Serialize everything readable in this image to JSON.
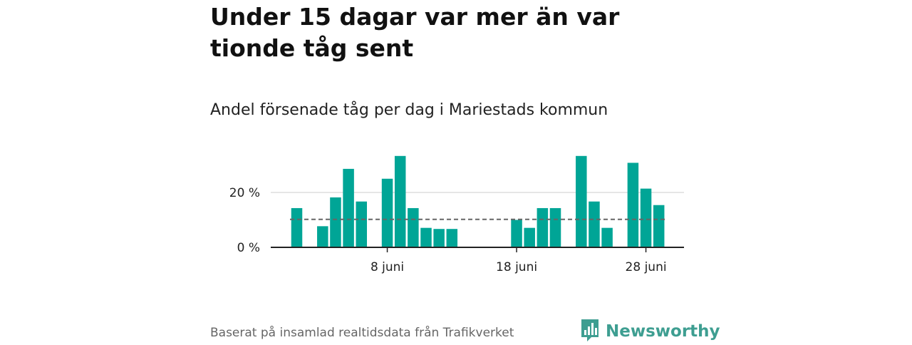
{
  "header": {
    "title": "Under 15 dagar var mer än var tionde tåg sent",
    "subtitle": "Andel försenade tåg per dag i Mariestads kommun"
  },
  "footer": {
    "source": "Baserat på insamlad realtidsdata från Trafikverket",
    "brand": "Newsworthy"
  },
  "colors": {
    "bar": "#00a596",
    "average": "#666666",
    "grid": "#dddddd",
    "axis": "#222222",
    "brand": "#3e9e91"
  },
  "icons": {
    "brand_logo": "newsworthy-bar-chart-icon"
  },
  "chart_data": {
    "type": "bar",
    "x": [
      "2022-06-01",
      "2022-06-02",
      "2022-06-03",
      "2022-06-04",
      "2022-06-05",
      "2022-06-06",
      "2022-06-07",
      "2022-06-08",
      "2022-06-09",
      "2022-06-10",
      "2022-06-11",
      "2022-06-12",
      "2022-06-13",
      "2022-06-14",
      "2022-06-15",
      "2022-06-16",
      "2022-06-17",
      "2022-06-18",
      "2022-06-19",
      "2022-06-20",
      "2022-06-21",
      "2022-06-22",
      "2022-06-23",
      "2022-06-24",
      "2022-06-25",
      "2022-06-26",
      "2022-06-27",
      "2022-06-28",
      "2022-06-29",
      "2022-06-30"
    ],
    "values": [
      14.3,
      null,
      7.7,
      18.2,
      28.6,
      16.7,
      null,
      25.0,
      33.3,
      14.3,
      7.1,
      6.7,
      6.7,
      null,
      null,
      null,
      null,
      10.0,
      7.1,
      14.3,
      14.3,
      null,
      33.3,
      16.7,
      7.1,
      null,
      30.8,
      21.4,
      15.4,
      null
    ],
    "average_line": 10.2,
    "y_ticks": [
      0,
      20
    ],
    "y_tick_labels": [
      "0 %",
      "20 %"
    ],
    "x_ticks": [
      "2022-06-08",
      "2022-06-18",
      "2022-06-28"
    ],
    "x_tick_labels": [
      "8 juni",
      "18 juni",
      "28 juni"
    ],
    "ylim": [
      0,
      35
    ],
    "unit": "%"
  }
}
